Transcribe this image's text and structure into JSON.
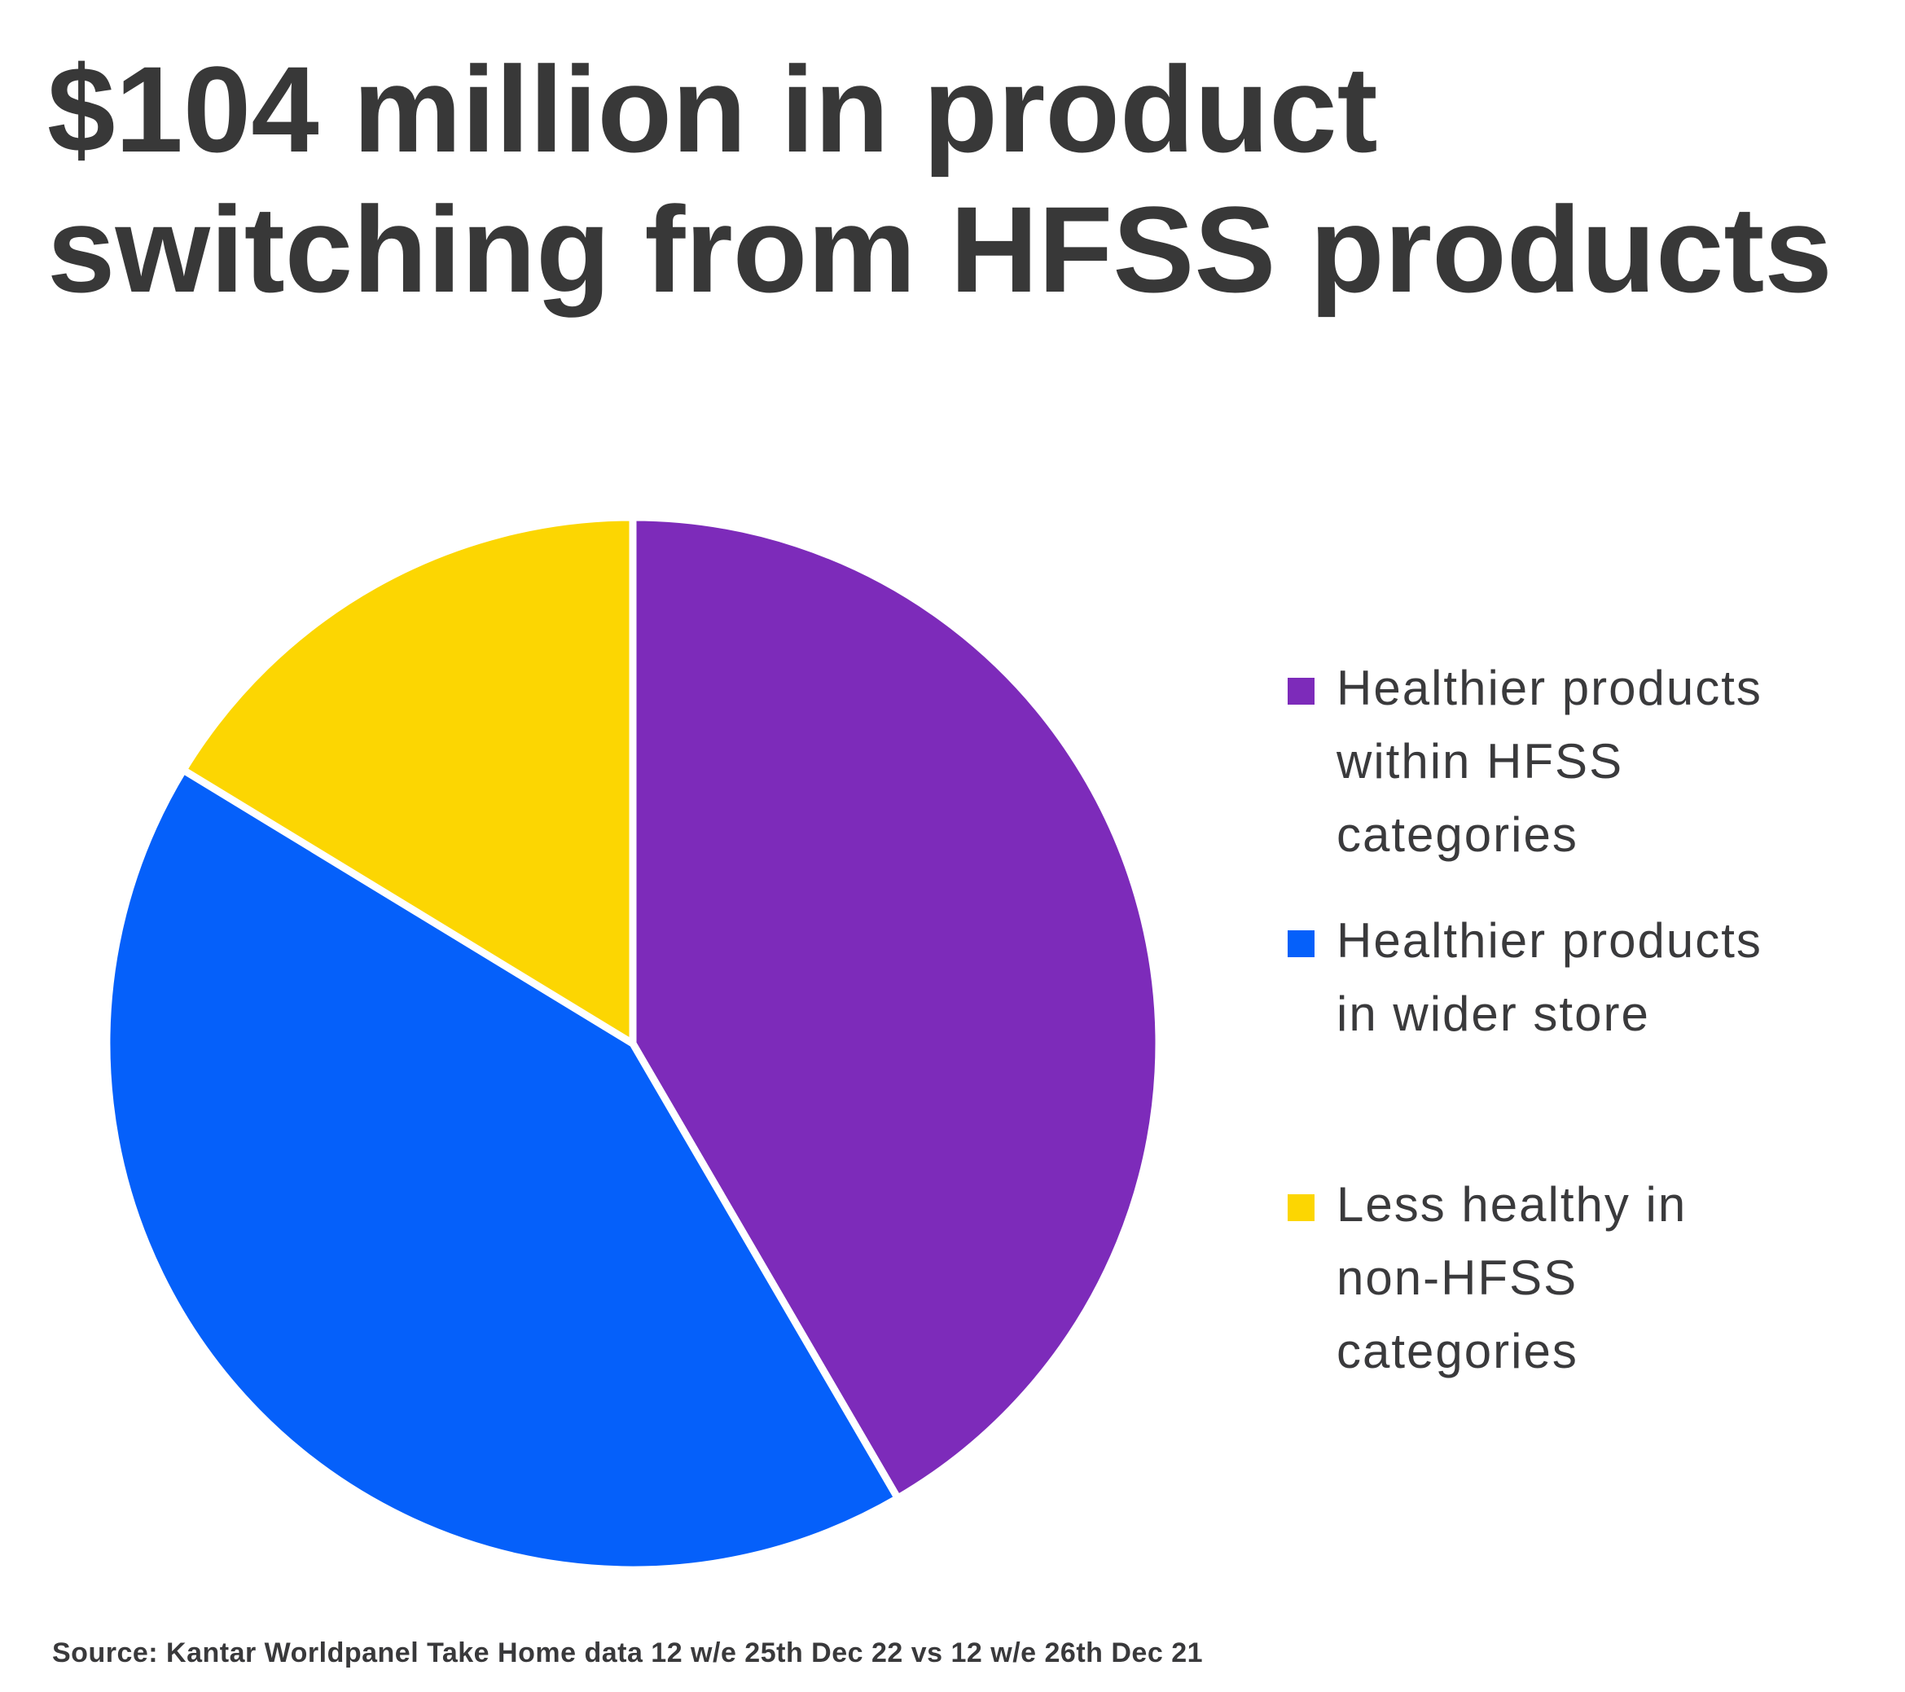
{
  "page": {
    "background": "#ffffff"
  },
  "title": {
    "text": "$104 million in product\nswitching from HFSS products",
    "color": "#383838"
  },
  "chart_data": {
    "type": "pie",
    "title": "$104 million in product switching from HFSS products",
    "total_label": "$104 million",
    "start_angle_deg": 0,
    "direction": "clockwise",
    "legend_position": "right",
    "separator_color": "#ffffff",
    "slices": [
      {
        "id": "healthier-within-hfss",
        "label": "Healthier products within HFSS categories",
        "label_lines": "Healthier products\nwithin HFSS\ncategories",
        "value": 41.6,
        "color": "#7d2bba"
      },
      {
        "id": "healthier-wider-store",
        "label": "Healthier products in wider store",
        "label_lines": "Healthier products\nin wider store",
        "value": 42.1,
        "color": "#0560fa"
      },
      {
        "id": "less-healthy-non-hfss",
        "label": "Less healthy in non-HFSS categories",
        "label_lines": "Less healthy in\nnon-HFSS\ncategories",
        "value": 16.3,
        "color": "#fcd602"
      }
    ]
  },
  "source": {
    "text": "Source: Kantar Worldpanel Take Home data 12 w/e 25th Dec 22 vs 12 w/e 26th Dec 21"
  }
}
